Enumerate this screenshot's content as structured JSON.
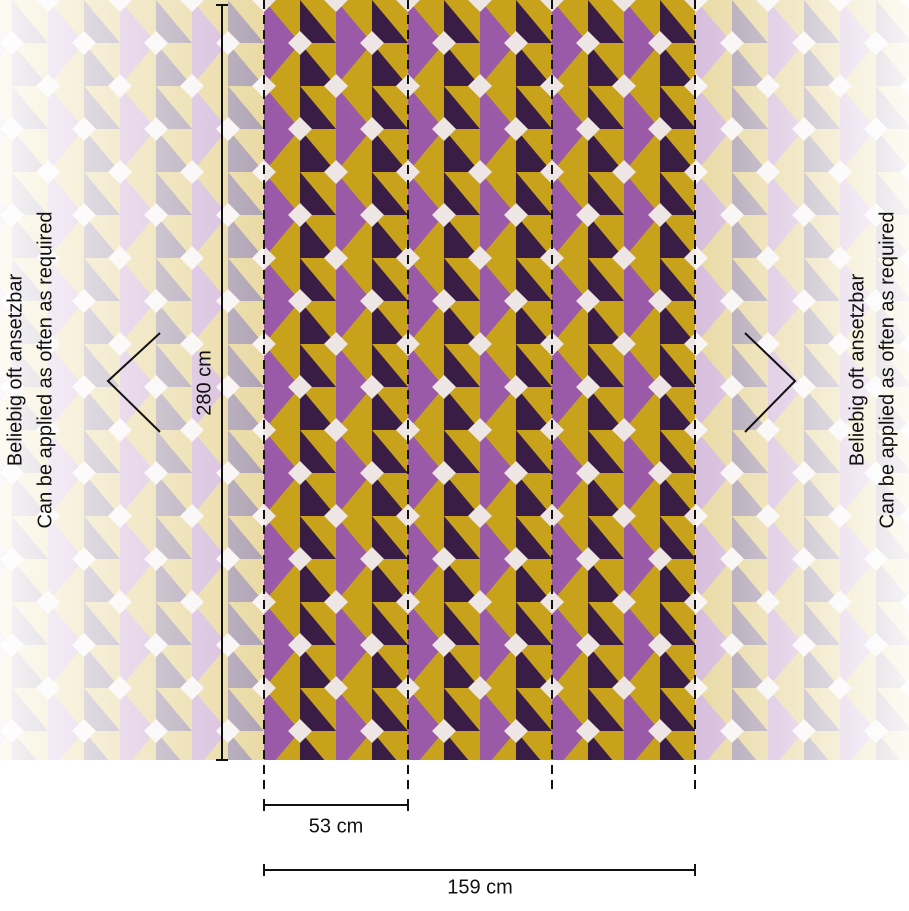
{
  "height_label": "280 cm",
  "strip_width_label": "53 cm",
  "total_width_label": "159 cm",
  "left_note": {
    "lines": [
      "Beliebig oft ansetzbar",
      "Can be applied as often as required"
    ]
  },
  "right_note": {
    "lines": [
      "Beliebig oft ansetzbar",
      "Can be applied as often as required"
    ]
  }
}
